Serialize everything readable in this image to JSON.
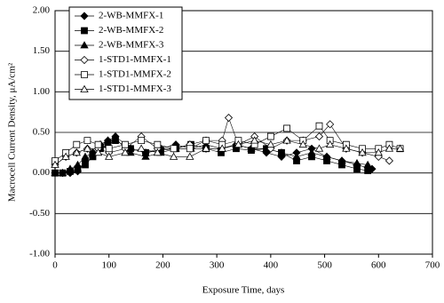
{
  "chart_data": {
    "type": "scatter",
    "xlabel": "Exposure Time, days",
    "ylabel": "Macrocell Current Density, μA/cm²",
    "xlim": [
      0,
      700
    ],
    "xticks": [
      0,
      100,
      200,
      300,
      400,
      500,
      600,
      700
    ],
    "ylim": [
      -1,
      2
    ],
    "yticks": [
      {
        "value": -1,
        "label": "-1.00"
      },
      {
        "value": -0.5,
        "label": "-0.50"
      },
      {
        "value": 0,
        "label": "0.00"
      },
      {
        "value": 0.5,
        "label": "0.50"
      },
      {
        "value": 1,
        "label": "1.00"
      },
      {
        "value": 1.5,
        "label": "1.50"
      },
      {
        "value": 2,
        "label": "2.00"
      }
    ],
    "grid": true,
    "legend": "upper left",
    "series": [
      {
        "name": "2-WB-MMFX-1",
        "color": "#000000",
        "marker": "diamond",
        "filled": true,
        "x": [
          0,
          14,
          28,
          42,
          56,
          70,
          84,
          98,
          112,
          140,
          168,
          196,
          224,
          252,
          280,
          308,
          336,
          364,
          392,
          420,
          448,
          476,
          504,
          532,
          560,
          588
        ],
        "values": [
          0,
          0,
          0,
          0.02,
          0.15,
          0.25,
          0.35,
          0.4,
          0.45,
          0.3,
          0.25,
          0.3,
          0.35,
          0.3,
          0.3,
          0.3,
          0.35,
          0.3,
          0.25,
          0.2,
          0.25,
          0.3,
          0.2,
          0.15,
          0.1,
          0.05
        ]
      },
      {
        "name": "2-WB-MMFX-2",
        "color": "#000000",
        "marker": "square",
        "filled": true,
        "x": [
          0,
          14,
          28,
          42,
          56,
          70,
          84,
          98,
          112,
          140,
          168,
          196,
          224,
          252,
          280,
          308,
          336,
          364,
          392,
          420,
          448,
          476,
          504,
          532,
          560,
          580
        ],
        "values": [
          0,
          0,
          0.02,
          0.05,
          0.1,
          0.2,
          0.3,
          0.35,
          0.4,
          0.3,
          0.25,
          0.28,
          0.3,
          0.35,
          0.3,
          0.25,
          0.3,
          0.28,
          0.3,
          0.25,
          0.15,
          0.2,
          0.15,
          0.1,
          0.05,
          0.03
        ]
      },
      {
        "name": "2-WB-MMFX-3",
        "color": "#000000",
        "marker": "triangle",
        "filled": true,
        "x": [
          0,
          14,
          28,
          42,
          56,
          70,
          84,
          98,
          112,
          140,
          168,
          196,
          224,
          252,
          280,
          308,
          336,
          364,
          392,
          420,
          448,
          476,
          504,
          532,
          560,
          580
        ],
        "values": [
          0,
          0,
          0.05,
          0.1,
          0.2,
          0.25,
          0.35,
          0.4,
          0.42,
          0.25,
          0.2,
          0.25,
          0.3,
          0.3,
          0.35,
          0.3,
          0.35,
          0.3,
          0.3,
          0.25,
          0.2,
          0.25,
          0.2,
          0.15,
          0.12,
          0.1
        ]
      },
      {
        "name": "1-STD1-MMFX-1",
        "color": "#000000",
        "marker": "diamond",
        "filled": false,
        "x": [
          0,
          20,
          40,
          60,
          80,
          100,
          130,
          160,
          190,
          220,
          250,
          280,
          310,
          322,
          340,
          370,
          400,
          430,
          460,
          490,
          510,
          540,
          570,
          600,
          620
        ],
        "values": [
          0.1,
          0.2,
          0.25,
          0.3,
          0.3,
          0.25,
          0.3,
          0.45,
          0.3,
          0.3,
          0.35,
          0.4,
          0.4,
          0.68,
          0.35,
          0.45,
          0.3,
          0.4,
          0.4,
          0.45,
          0.6,
          0.3,
          0.25,
          0.2,
          0.15
        ]
      },
      {
        "name": "1-STD1-MMFX-2",
        "color": "#000000",
        "marker": "square",
        "filled": false,
        "x": [
          0,
          20,
          40,
          60,
          80,
          100,
          130,
          160,
          190,
          220,
          250,
          280,
          310,
          340,
          370,
          400,
          430,
          460,
          490,
          510,
          540,
          570,
          600,
          620,
          640
        ],
        "values": [
          0.15,
          0.25,
          0.35,
          0.4,
          0.35,
          0.3,
          0.35,
          0.4,
          0.35,
          0.3,
          0.3,
          0.4,
          0.35,
          0.4,
          0.35,
          0.45,
          0.55,
          0.4,
          0.58,
          0.4,
          0.35,
          0.3,
          0.3,
          0.35,
          0.3
        ]
      },
      {
        "name": "1-STD1-MMFX-3",
        "color": "#000000",
        "marker": "triangle",
        "filled": false,
        "x": [
          0,
          20,
          40,
          60,
          80,
          100,
          130,
          160,
          190,
          220,
          250,
          280,
          310,
          340,
          370,
          400,
          430,
          460,
          490,
          510,
          540,
          570,
          600,
          620,
          640
        ],
        "values": [
          0.1,
          0.2,
          0.25,
          0.3,
          0.25,
          0.2,
          0.25,
          0.3,
          0.25,
          0.2,
          0.2,
          0.3,
          0.3,
          0.35,
          0.4,
          0.35,
          0.4,
          0.35,
          0.3,
          0.35,
          0.3,
          0.25,
          0.25,
          0.3,
          0.3
        ]
      }
    ]
  }
}
